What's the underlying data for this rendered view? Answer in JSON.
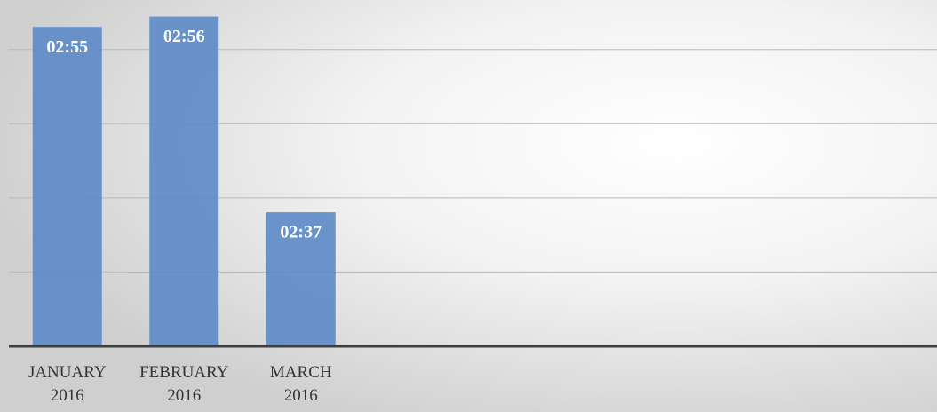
{
  "chart_data": {
    "type": "bar",
    "categories": [
      "JANUARY 2016",
      "FEBRUARY 2016",
      "MARCH 2016"
    ],
    "values": [
      175,
      176,
      157
    ],
    "value_labels": [
      "02:55",
      "02:56",
      "02:37"
    ],
    "color": "#5b8ac6",
    "ylim": [
      144,
      177.6
    ],
    "yticks": [
      151.2,
      158.4,
      165.6,
      172.8
    ],
    "grid": true
  }
}
